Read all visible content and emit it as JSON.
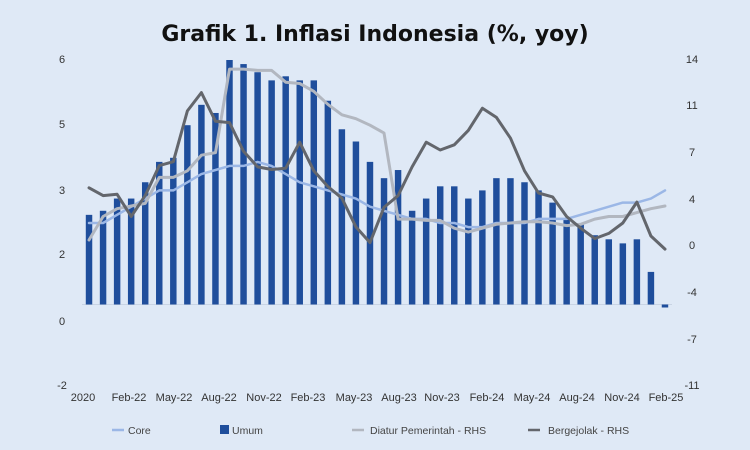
{
  "chart_data": {
    "type": "bar",
    "title": "Grafik 1. Inflasi Indonesia (%, yoy)",
    "x_tick_labels": [
      "2020",
      "Feb-22",
      "May-22",
      "Aug-22",
      "Nov-22",
      "Feb-23",
      "May-23",
      "Aug-23",
      "Nov-23",
      "Feb-24",
      "May-24",
      "Aug-24",
      "Nov-24",
      "Feb-25"
    ],
    "left_axis": {
      "ylim": [
        -2,
        6
      ],
      "ticks": [
        "-2",
        "0",
        "2",
        "3",
        "5",
        "6"
      ]
    },
    "right_axis": {
      "ylim": [
        -11,
        14
      ],
      "ticks": [
        "-11",
        "-7",
        "-4",
        "0",
        "4",
        "7",
        "11",
        "14"
      ]
    },
    "grid": false,
    "legend_position": "bottom",
    "legend": [
      "Core",
      "Umum",
      "Diatur Pemerintah - RHS",
      "Bergejolak - RHS"
    ],
    "series": [
      {
        "name": "Umum",
        "type": "bar",
        "axis": "left",
        "color": "#1f4e9c",
        "values": [
          2.2,
          2.3,
          2.6,
          2.6,
          3.0,
          3.5,
          3.6,
          4.4,
          4.9,
          4.7,
          6.0,
          5.9,
          5.7,
          5.5,
          5.6,
          5.5,
          5.5,
          5.0,
          4.3,
          4.0,
          3.5,
          3.1,
          3.3,
          2.3,
          2.6,
          2.9,
          2.9,
          2.6,
          2.8,
          3.1,
          3.1,
          3.0,
          2.8,
          2.5,
          2.1,
          2.0,
          1.7,
          1.6,
          1.5,
          1.6,
          0.8,
          0.0
        ]
      },
      {
        "name": "Core",
        "type": "line",
        "axis": "left",
        "color": "#9bb7e6",
        "values": [
          2.0,
          2.0,
          2.2,
          2.4,
          2.6,
          2.8,
          2.8,
          3.0,
          3.2,
          3.3,
          3.4,
          3.4,
          3.5,
          3.4,
          3.2,
          3.0,
          2.9,
          2.8,
          2.7,
          2.6,
          2.4,
          2.3,
          2.2,
          2.1,
          2.1,
          2.0,
          2.0,
          1.9,
          1.9,
          2.0,
          2.0,
          2.0,
          2.1,
          2.1,
          2.1,
          2.2,
          2.3,
          2.4,
          2.5,
          2.5,
          2.6,
          2.8
        ]
      },
      {
        "name": "Diatur Pemerintah - RHS",
        "type": "line",
        "axis": "right",
        "color": "#b2b7c0",
        "values": [
          0.2,
          2.0,
          2.6,
          2.8,
          3.0,
          5.0,
          5.0,
          5.5,
          6.7,
          6.9,
          13.3,
          13.3,
          13.2,
          13.2,
          12.3,
          12.2,
          11.6,
          10.6,
          9.8,
          9.5,
          9.0,
          8.4,
          1.8,
          1.8,
          1.7,
          1.7,
          1.1,
          0.8,
          1.1,
          1.4,
          1.5,
          1.6,
          1.6,
          1.5,
          1.3,
          1.4,
          1.8,
          2.0,
          2.0,
          2.3,
          2.6,
          2.8
        ]
      },
      {
        "name": "Bergejolak - RHS",
        "type": "line",
        "axis": "right",
        "color": "#63666c",
        "values": [
          4.2,
          3.6,
          3.7,
          2.0,
          3.6,
          5.9,
          6.2,
          10.1,
          11.5,
          9.3,
          9.2,
          7.0,
          5.8,
          5.6,
          5.7,
          7.7,
          5.5,
          4.3,
          3.4,
          1.2,
          0.0,
          2.7,
          3.6,
          5.8,
          7.7,
          7.1,
          7.5,
          8.6,
          10.3,
          9.6,
          8.0,
          5.5,
          3.8,
          3.5,
          2.0,
          1.1,
          0.3,
          0.7,
          1.5,
          3.1,
          0.5,
          -0.5
        ]
      }
    ]
  }
}
